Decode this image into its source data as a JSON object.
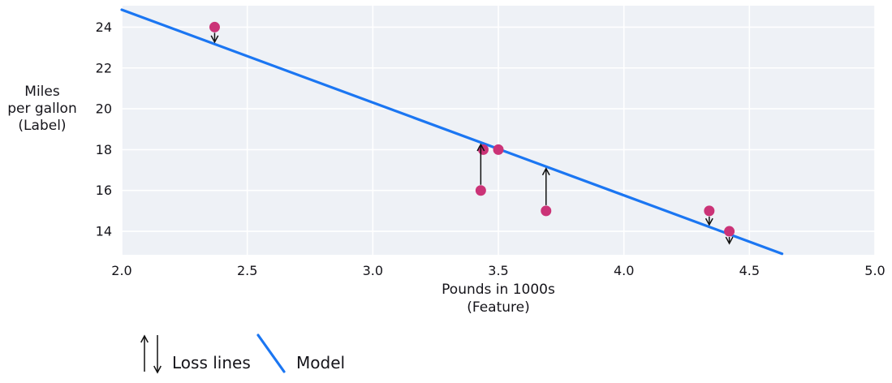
{
  "figure": {
    "ylabel_lines": [
      "Miles",
      "per gallon",
      "(Label)"
    ],
    "xlabel_lines": [
      "Pounds in 1000s",
      "(Feature)"
    ],
    "legend": {
      "loss_label": "Loss lines",
      "model_label": "Model"
    }
  },
  "colors": {
    "plot_bg": "#eef1f6",
    "grid": "#ffffff",
    "model_line": "#1b76f2",
    "point": "#cb3377",
    "arrow": "#111111",
    "text": "#15141a"
  },
  "chart_data": {
    "type": "scatter",
    "title": "",
    "xlabel": "Pounds in 1000s (Feature)",
    "ylabel": "Miles per gallon (Label)",
    "xlim": [
      2.0,
      5.0
    ],
    "ylim": [
      12.85,
      25.05
    ],
    "x_ticks": [
      2.0,
      2.5,
      3.0,
      3.5,
      4.0,
      4.5,
      5.0
    ],
    "x_tick_labels": [
      "2.0",
      "2.5",
      "3.0",
      "3.5",
      "4.0",
      "4.5",
      "5.0"
    ],
    "y_ticks": [
      14,
      16,
      18,
      20,
      22,
      24
    ],
    "y_tick_labels": [
      "14",
      "16",
      "18",
      "20",
      "22",
      "24"
    ],
    "grid": true,
    "legend_position": "below-left",
    "points": [
      {
        "x": 2.37,
        "y": 24,
        "loss_arrow": "down"
      },
      {
        "x": 3.44,
        "y": 18,
        "loss_arrow": "none"
      },
      {
        "x": 3.5,
        "y": 18,
        "loss_arrow": "none"
      },
      {
        "x": 3.43,
        "y": 16,
        "loss_arrow": "up"
      },
      {
        "x": 3.69,
        "y": 15,
        "loss_arrow": "up"
      },
      {
        "x": 4.34,
        "y": 15,
        "loss_arrow": "down"
      },
      {
        "x": 4.42,
        "y": 14,
        "loss_arrow": "down"
      }
    ],
    "model_line_endpoints": [
      {
        "x": 2.0,
        "y": 24.85
      },
      {
        "x": 4.63,
        "y": 12.9
      }
    ]
  }
}
